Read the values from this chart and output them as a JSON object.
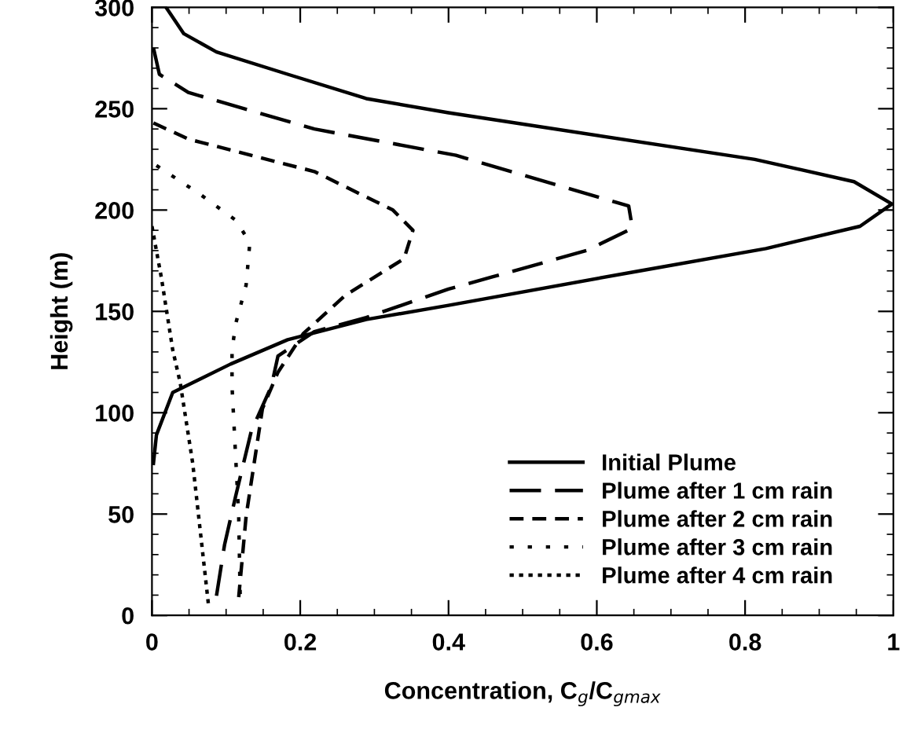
{
  "chart_data": {
    "type": "line",
    "xlabel": "Concentration, C$_{g}$/C$_{gmax}$",
    "ylabel": "Height (m)",
    "xlim": [
      0,
      1
    ],
    "xticks": [
      0,
      0.2,
      0.4,
      0.6,
      0.8,
      1
    ],
    "ylim": [
      0,
      300
    ],
    "yticks": [
      0,
      50,
      100,
      150,
      200,
      250,
      300
    ],
    "grid": false,
    "legend": "bottom right",
    "marker": "none",
    "series": [
      {
        "name": "Initial Plume",
        "color": "#000000",
        "line_style": "solid",
        "x": [
          0.019,
          0.043,
          0.087,
          0.183,
          0.289,
          0.4,
          0.813,
          0.947,
          0.998,
          0.955,
          0.828,
          0.658,
          0.4,
          0.289,
          0.183,
          0.106,
          0.028,
          0.006,
          0.002
        ],
        "values": [
          300,
          287,
          278,
          267,
          255,
          248,
          225,
          214,
          203,
          192,
          181,
          170,
          153,
          146,
          136,
          124,
          110,
          89,
          75
        ]
      },
      {
        "name": "Plume after 1 cm rain",
        "color": "#000000",
        "line_style": "long_dash",
        "x": [
          0.002,
          0.01,
          0.049,
          0.219,
          0.41,
          0.643,
          0.648,
          0.586,
          0.459,
          0.4,
          0.289,
          0.219,
          0.17,
          0.161,
          0.134,
          0.113,
          0.098,
          0.085
        ],
        "values": [
          280,
          267,
          258,
          240,
          227,
          202,
          191,
          180,
          167,
          161,
          147,
          140,
          128,
          113,
          91,
          59,
          35,
          5
        ]
      },
      {
        "name": "Plume after 2 cm rain",
        "color": "#000000",
        "line_style": "dashed",
        "x": [
          0.002,
          0.049,
          0.219,
          0.325,
          0.352,
          0.34,
          0.261,
          0.204,
          0.17,
          0.149,
          0.127,
          0.117
        ],
        "values": [
          243,
          235,
          219,
          200,
          190,
          176,
          158,
          139,
          120,
          102,
          49,
          9
        ]
      },
      {
        "name": "Plume after 3 cm rain",
        "color": "#000000",
        "line_style": "sparse_dotted",
        "x": [
          0.006,
          0.064,
          0.113,
          0.132,
          0.127,
          0.113,
          0.108,
          0.108,
          0.117,
          0.119
        ],
        "values": [
          222,
          208,
          195,
          184,
          163,
          144,
          131,
          113,
          49,
          9
        ]
      },
      {
        "name": "Plume after 4 cm rain",
        "color": "#000000",
        "line_style": "dotted",
        "x": [
          0.0,
          0.013,
          0.028,
          0.038,
          0.055,
          0.076
        ],
        "values": [
          192,
          166,
          131,
          115,
          75,
          6
        ]
      }
    ]
  }
}
